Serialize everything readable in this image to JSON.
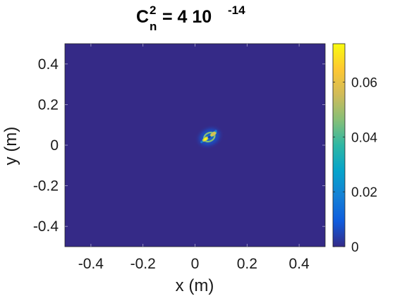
{
  "chart_data": {
    "type": "heatmap",
    "title": {
      "base": "C",
      "superscript": "2",
      "subscript": "n",
      "equals": "= 4 10",
      "exponent": "-14"
    },
    "xlabel": "x (m)",
    "ylabel": "y (m)",
    "xlim": [
      -0.5,
      0.5
    ],
    "ylim": [
      -0.5,
      0.5
    ],
    "xticks": [
      {
        "value": -0.4,
        "label": "-0.4"
      },
      {
        "value": -0.2,
        "label": "-0.2"
      },
      {
        "value": 0,
        "label": "0"
      },
      {
        "value": 0.2,
        "label": "0.2"
      },
      {
        "value": 0.4,
        "label": "0.4"
      }
    ],
    "yticks": [
      {
        "value": 0.4,
        "label": "0.4"
      },
      {
        "value": 0.2,
        "label": "0.2"
      },
      {
        "value": 0,
        "label": "0"
      },
      {
        "value": -0.2,
        "label": "-0.2"
      },
      {
        "value": -0.4,
        "label": "-0.4"
      }
    ],
    "colorbar": {
      "range": [
        0,
        0.074
      ],
      "ticks": [
        {
          "value": 0,
          "label": "0"
        },
        {
          "value": 0.02,
          "label": "0.02"
        },
        {
          "value": 0.04,
          "label": "0.04"
        },
        {
          "value": 0.06,
          "label": "0.06"
        }
      ],
      "colormap": "parula",
      "stops": [
        "#352a87",
        "#0f5cdd",
        "#1481d6",
        "#06a4ca",
        "#2eb7a4",
        "#87bf77",
        "#d1bb59",
        "#fec832",
        "#f9fb0e"
      ]
    },
    "background_color": "#352a87",
    "spot": {
      "center_x": 0.055,
      "center_y": 0.04,
      "peak_value": 0.074,
      "features": [
        {
          "shape": "ring",
          "x": 0.055,
          "y": 0.04,
          "radius": 0.02,
          "value": 0.045
        },
        {
          "shape": "blob",
          "x": 0.04,
          "y": 0.03,
          "value": 0.07
        },
        {
          "shape": "blob",
          "x": 0.07,
          "y": 0.055,
          "value": 0.055
        },
        {
          "shape": "speckle",
          "x": 0.08,
          "y": 0.07,
          "value": 0.02
        },
        {
          "shape": "speckle",
          "x": 0.025,
          "y": 0.015,
          "value": 0.02
        }
      ]
    }
  }
}
